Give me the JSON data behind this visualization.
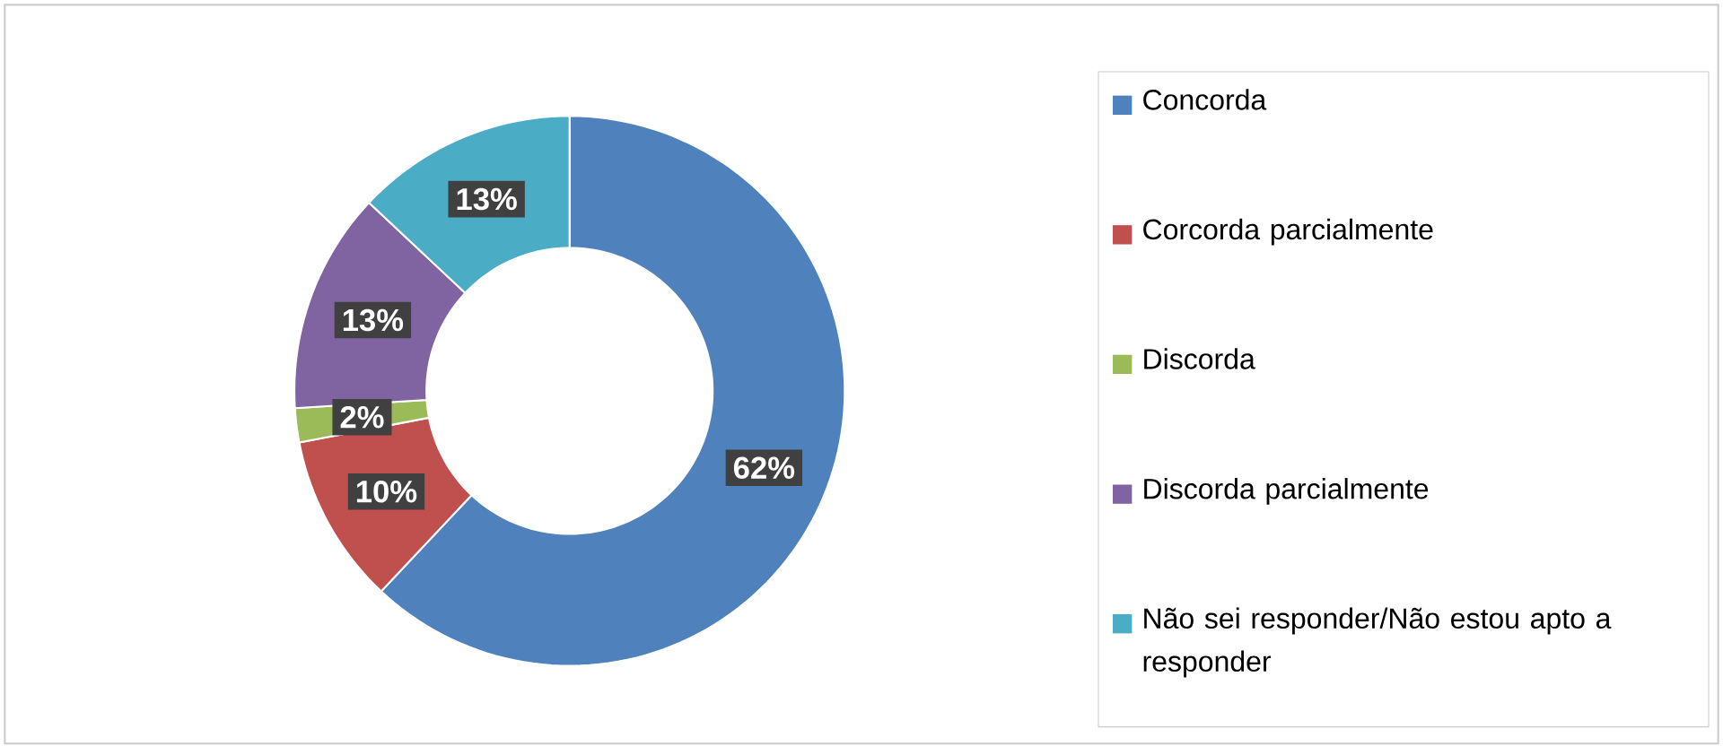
{
  "chart_data": {
    "type": "donut",
    "categories": [
      "Concorda",
      "Corcorda parcialmente",
      "Discorda",
      "Discorda parcialmente",
      "Não sei responder/Não estou apto a responder"
    ],
    "values": [
      62,
      10,
      2,
      13,
      13
    ],
    "value_labels": [
      "62%",
      "10%",
      "2%",
      "13%",
      "13%"
    ],
    "colors": [
      "#4f81bd",
      "#c0504d",
      "#9bbb59",
      "#8064a2",
      "#4bacc6"
    ],
    "legend": "right"
  }
}
